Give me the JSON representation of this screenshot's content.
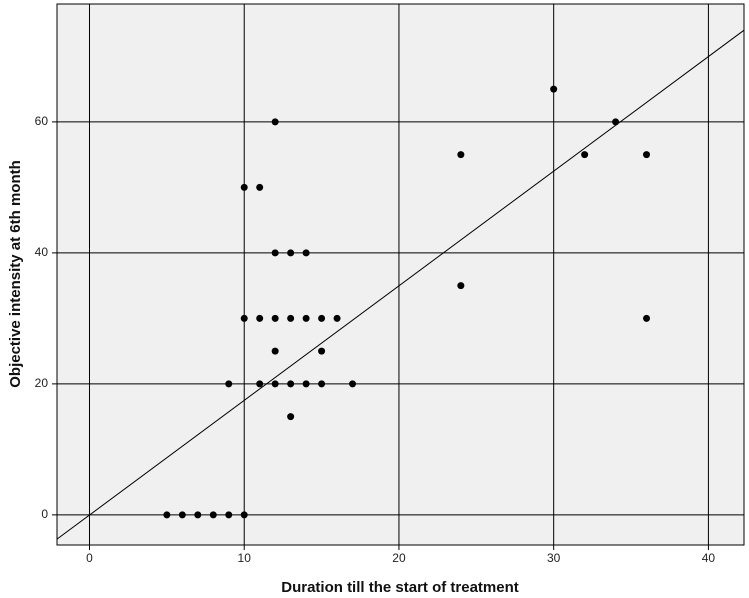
{
  "chart_data": {
    "type": "scatter",
    "x_label": "Duration till the start of treatment",
    "y_label": "Objective intensity at 6th month",
    "xlim": [
      -2.1,
      42.3
    ],
    "ylim": [
      -4.6,
      78
    ],
    "xticks": [
      0,
      10,
      20,
      30,
      40
    ],
    "yticks": [
      0,
      20,
      40,
      60
    ],
    "grid": true,
    "color": "#000000",
    "series": [
      {
        "x": [
          5,
          6,
          7,
          8,
          9,
          10,
          9,
          11,
          12,
          13,
          14,
          15,
          17,
          13,
          12,
          15,
          10,
          11,
          12,
          13,
          14,
          15,
          16,
          36,
          24,
          12,
          13,
          14,
          10,
          11,
          24,
          32,
          36,
          12,
          34,
          30
        ],
        "y": [
          0,
          0,
          0,
          0,
          0,
          0,
          20,
          20,
          20,
          20,
          20,
          20,
          20,
          15,
          25,
          25,
          30,
          30,
          30,
          30,
          30,
          30,
          30,
          30,
          35,
          40,
          40,
          40,
          50,
          50,
          55,
          55,
          55,
          60,
          60,
          65
        ]
      }
    ],
    "fit_line": {
      "x": [
        -2.1,
        42.3
      ],
      "y": [
        -3.7,
        74
      ]
    }
  }
}
